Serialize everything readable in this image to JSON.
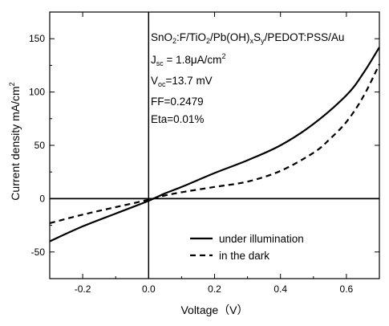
{
  "chart_data": {
    "type": "line",
    "title": "",
    "xlabel": "Voltage（V）",
    "ylabel": "Current density  mA/cm²",
    "xlim": [
      -0.3,
      0.7
    ],
    "ylim": [
      -75,
      175
    ],
    "xticks": [
      -0.2,
      0.0,
      0.2,
      0.4,
      0.6
    ],
    "xtick_labels": [
      "-0.2",
      "0.0",
      "0.2",
      "0.4",
      "0.6"
    ],
    "yticks": [
      -50,
      0,
      50,
      100,
      150
    ],
    "ytick_labels": [
      "-50",
      "0",
      "50",
      "100",
      "150"
    ],
    "grid": false,
    "legend_position": "bottom-right",
    "series": [
      {
        "name": "under illumination",
        "style": "solid",
        "x": [
          -0.3,
          -0.2,
          -0.1,
          0.0,
          0.05,
          0.1,
          0.2,
          0.3,
          0.4,
          0.5,
          0.6,
          0.65,
          0.7
        ],
        "y": [
          -40,
          -26,
          -14,
          -2,
          5,
          11,
          24,
          36,
          50,
          70,
          97,
          117,
          142
        ]
      },
      {
        "name": "in the dark",
        "style": "dashed",
        "x": [
          -0.3,
          -0.2,
          -0.1,
          0.0,
          0.05,
          0.1,
          0.2,
          0.3,
          0.4,
          0.5,
          0.55,
          0.6,
          0.65,
          0.7
        ],
        "y": [
          -23,
          -15,
          -8,
          -1,
          3,
          6,
          11,
          16,
          26,
          43,
          56,
          72,
          95,
          126
        ]
      }
    ],
    "annotations": {
      "line1": {
        "base": "SnO",
        "s1": "2",
        "mid1": ":F/TiO",
        "s2": "2",
        "mid2": "/Pb(OH)",
        "s3": "x",
        "mid3": "S",
        "s4": "y",
        "end": "/PEDOT:PSS/Au"
      },
      "line2": {
        "base": "J",
        "sub": "sc",
        "mid": " = 1.8μA/cm",
        "sup": "2"
      },
      "line3": {
        "base": "V",
        "sub": "oc",
        "rest": "=13.7 mV"
      },
      "line4": "FF=0.2479",
      "line5": "Eta=0.01%"
    }
  }
}
